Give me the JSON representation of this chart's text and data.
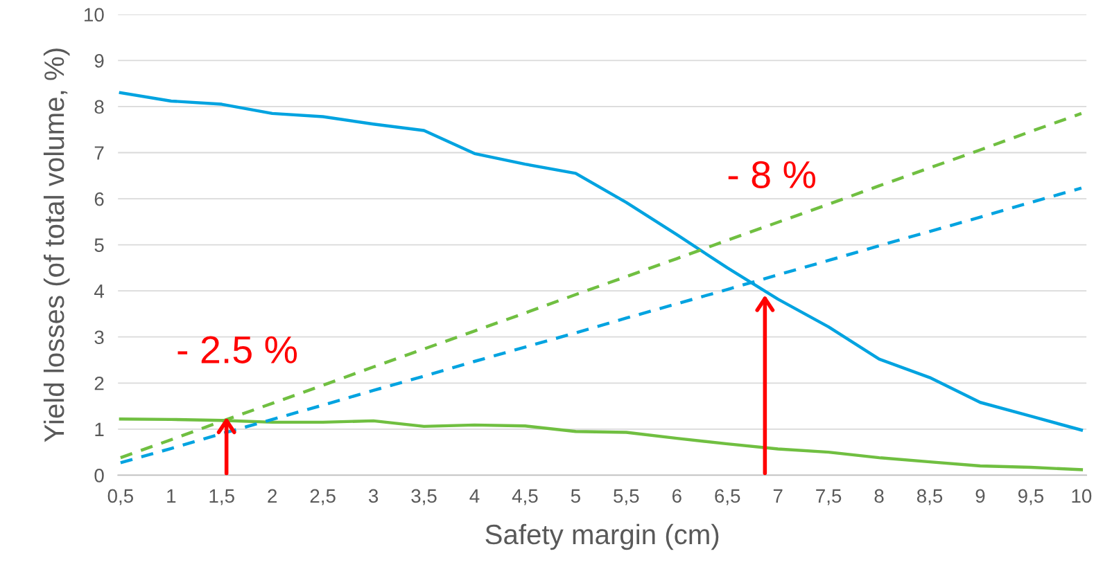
{
  "chart_data": {
    "type": "line",
    "xlabel": "Safety margin (cm)",
    "ylabel": "Yield losses (of total volume, %)",
    "categories": [
      "0,5",
      "1",
      "1,5",
      "2",
      "2,5",
      "3",
      "3,5",
      "4",
      "4,5",
      "5",
      "5,5",
      "6",
      "6,5",
      "7",
      "7,5",
      "8",
      "8,5",
      "9",
      "9,5",
      "10"
    ],
    "series": [
      {
        "color": "#00a3e0",
        "line_style": "solid",
        "values": [
          8.3,
          8.12,
          8.05,
          7.85,
          7.78,
          7.62,
          7.48,
          6.98,
          6.75,
          6.55,
          5.92,
          5.22,
          4.5,
          3.82,
          3.22,
          2.52,
          2.12,
          1.58,
          1.28,
          0.98
        ]
      },
      {
        "color": "#70bf41",
        "line_style": "solid",
        "values": [
          1.22,
          1.21,
          1.19,
          1.15,
          1.15,
          1.18,
          1.06,
          1.09,
          1.07,
          0.95,
          0.93,
          0.8,
          0.68,
          0.57,
          0.5,
          0.38,
          0.29,
          0.2,
          0.17,
          0.12
        ]
      },
      {
        "color": "#70bf41",
        "line_style": "dashed",
        "values": [
          0.38,
          0.77,
          1.17,
          1.56,
          1.95,
          2.35,
          2.74,
          3.13,
          3.52,
          3.92,
          4.31,
          4.7,
          5.1,
          5.49,
          5.88,
          6.28,
          6.67,
          7.06,
          7.46,
          7.85
        ]
      },
      {
        "color": "#00a3e0",
        "line_style": "dashed",
        "values": [
          0.27,
          0.58,
          0.9,
          1.21,
          1.52,
          1.84,
          2.15,
          2.47,
          2.78,
          3.09,
          3.41,
          3.72,
          4.03,
          4.35,
          4.66,
          4.98,
          5.29,
          5.6,
          5.92,
          6.23
        ]
      }
    ],
    "ylim": [
      0,
      10
    ],
    "yticks": [
      0,
      1,
      2,
      3,
      4,
      5,
      6,
      7,
      8,
      9,
      10
    ],
    "grid": "y",
    "marker": "none",
    "annotations": [
      "- 2.5 %",
      "- 8 %"
    ]
  }
}
